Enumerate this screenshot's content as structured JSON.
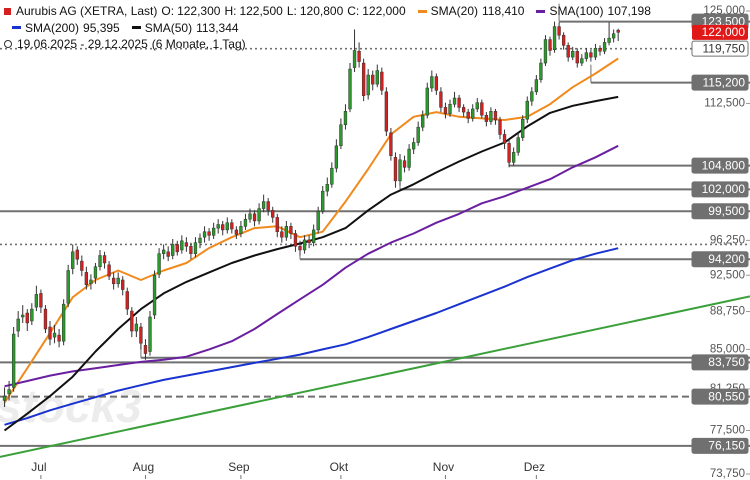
{
  "chart_data": {
    "type": "candlestick",
    "name": "Aurubis AG (XETRA, Last)",
    "name_color": "#d42020",
    "quote_keys": [
      "O:",
      "H:",
      "L:",
      "C:"
    ],
    "quote_labels": [
      "122,300",
      "122,500",
      "120,800",
      "122,000"
    ],
    "date_range": "19.06.2025 - 29.12.2025",
    "period": "(6 Monate, 1 Tag)",
    "watermark": "stock3",
    "log_scale": true,
    "grid": false,
    "up_color": "#2a9a2a",
    "down_color": "#d42020",
    "xlim": [
      -1,
      164
    ],
    "ylim": [
      73.75,
      125
    ],
    "yticks": [
      {
        "value": 125,
        "label": "125,000"
      },
      {
        "value": 112.5,
        "label": "112,500"
      },
      {
        "value": 96.25,
        "label": "96,250"
      },
      {
        "value": 92.5,
        "label": "92,500"
      },
      {
        "value": 88.75,
        "label": "88,750"
      },
      {
        "value": 85,
        "label": "85,000"
      },
      {
        "value": 81.25,
        "label": "81,250"
      },
      {
        "value": 77.5,
        "label": "77,500"
      },
      {
        "value": 73.75,
        "label": "73,750"
      }
    ],
    "categories": [
      null,
      null,
      null,
      null,
      null,
      null,
      null,
      null,
      "Jul",
      null,
      null,
      null,
      null,
      null,
      null,
      null,
      null,
      null,
      null,
      null,
      null,
      null,
      null,
      null,
      null,
      null,
      null,
      null,
      null,
      null,
      null,
      "Aug",
      null,
      null,
      null,
      null,
      null,
      null,
      null,
      null,
      null,
      null,
      null,
      null,
      null,
      null,
      null,
      null,
      null,
      null,
      null,
      null,
      "Sep",
      null,
      null,
      null,
      null,
      null,
      null,
      null,
      null,
      null,
      null,
      null,
      null,
      null,
      null,
      null,
      null,
      null,
      null,
      null,
      null,
      null,
      "Okt",
      null,
      null,
      null,
      null,
      null,
      null,
      null,
      null,
      null,
      null,
      null,
      null,
      null,
      null,
      null,
      null,
      null,
      null,
      null,
      null,
      null,
      null,
      "Nov",
      null,
      null,
      null,
      null,
      null,
      null,
      null,
      null,
      null,
      null,
      null,
      null,
      null,
      null,
      null,
      null,
      null,
      null,
      null,
      "Dez",
      null,
      null,
      null,
      null,
      null,
      null,
      null,
      null,
      null,
      null,
      null,
      null,
      null,
      null,
      null,
      null,
      null,
      null
    ],
    "candles": [
      [
        80.2,
        81.4,
        79.6,
        80.6
      ],
      [
        80.8,
        82.0,
        80.2,
        81.2
      ],
      [
        81.4,
        87.2,
        81.0,
        86.5
      ],
      [
        86.8,
        88.8,
        86.2,
        88.0
      ],
      [
        88.2,
        89.4,
        87.6,
        88.4
      ],
      [
        88.6,
        89.0,
        86.8,
        87.6
      ],
      [
        87.8,
        89.6,
        87.4,
        89.0
      ],
      [
        89.2,
        91.4,
        88.8,
        90.5
      ],
      [
        90.6,
        91.0,
        88.6,
        89.2
      ],
      [
        89.0,
        89.4,
        86.6,
        87.0
      ],
      [
        87.2,
        87.8,
        85.4,
        86.0
      ],
      [
        86.2,
        87.4,
        85.6,
        86.6
      ],
      [
        86.4,
        87.0,
        85.2,
        85.8
      ],
      [
        85.8,
        90.0,
        85.4,
        89.5
      ],
      [
        89.6,
        93.6,
        89.2,
        93.0
      ],
      [
        93.2,
        95.8,
        92.6,
        95.0
      ],
      [
        95.2,
        95.6,
        93.6,
        94.2
      ],
      [
        94.0,
        94.6,
        92.4,
        93.0
      ],
      [
        92.8,
        93.4,
        91.0,
        91.5
      ],
      [
        91.6,
        92.6,
        91.0,
        92.0
      ],
      [
        92.2,
        93.8,
        91.6,
        93.4
      ],
      [
        93.4,
        95.2,
        93.0,
        94.6
      ],
      [
        94.6,
        95.0,
        93.2,
        93.8
      ],
      [
        93.6,
        94.0,
        92.0,
        92.4
      ],
      [
        92.2,
        92.8,
        91.0,
        91.6
      ],
      [
        91.6,
        92.8,
        91.2,
        92.2
      ],
      [
        92.0,
        92.4,
        90.4,
        91.0
      ],
      [
        90.8,
        91.2,
        88.4,
        89.0
      ],
      [
        88.8,
        89.2,
        86.2,
        86.8
      ],
      [
        86.8,
        88.2,
        86.2,
        87.5
      ],
      [
        87.2,
        87.6,
        85.0,
        85.6
      ],
      [
        85.4,
        86.0,
        84.0,
        84.6
      ],
      [
        84.8,
        88.8,
        84.4,
        88.2
      ],
      [
        88.4,
        93.0,
        88.0,
        92.5
      ],
      [
        92.6,
        95.4,
        92.2,
        94.8
      ],
      [
        94.8,
        95.8,
        94.2,
        95.2
      ],
      [
        95.0,
        95.6,
        94.0,
        94.5
      ],
      [
        94.6,
        96.4,
        94.2,
        95.8
      ],
      [
        95.8,
        96.2,
        94.6,
        95.0
      ],
      [
        95.2,
        96.8,
        94.8,
        96.2
      ],
      [
        96.0,
        96.6,
        95.0,
        95.6
      ],
      [
        95.6,
        96.0,
        94.2,
        94.8
      ],
      [
        94.8,
        96.6,
        94.4,
        96.0
      ],
      [
        96.0,
        97.0,
        95.4,
        96.5
      ],
      [
        96.6,
        97.8,
        96.0,
        97.2
      ],
      [
        97.2,
        97.6,
        96.2,
        96.8
      ],
      [
        96.8,
        98.2,
        96.4,
        97.6
      ],
      [
        97.6,
        98.6,
        97.0,
        98.0
      ],
      [
        98.0,
        98.4,
        96.8,
        97.4
      ],
      [
        97.4,
        98.8,
        97.0,
        98.2
      ],
      [
        98.2,
        98.6,
        97.0,
        97.5
      ],
      [
        97.4,
        97.8,
        96.4,
        96.9
      ],
      [
        97.0,
        98.4,
        96.6,
        97.8
      ],
      [
        97.8,
        99.2,
        97.4,
        98.6
      ],
      [
        98.6,
        99.8,
        98.2,
        99.2
      ],
      [
        99.2,
        99.6,
        97.8,
        98.4
      ],
      [
        98.4,
        100.4,
        98.0,
        99.8
      ],
      [
        99.8,
        101.4,
        99.4,
        100.6
      ],
      [
        100.6,
        101.0,
        99.0,
        99.6
      ],
      [
        99.6,
        100.0,
        98.2,
        98.8
      ],
      [
        98.8,
        99.2,
        96.6,
        97.2
      ],
      [
        97.2,
        97.8,
        96.0,
        96.6
      ],
      [
        96.6,
        98.4,
        96.2,
        97.8
      ],
      [
        97.8,
        98.2,
        96.4,
        97.0
      ],
      [
        97.0,
        97.4,
        95.0,
        95.6
      ],
      [
        95.6,
        96.2,
        94.6,
        95.2
      ],
      [
        95.2,
        96.8,
        94.8,
        96.3
      ],
      [
        96.3,
        96.8,
        95.4,
        96.0
      ],
      [
        96.0,
        98.0,
        95.6,
        97.4
      ],
      [
        97.4,
        100.0,
        97.0,
        99.5
      ],
      [
        99.5,
        102.4,
        99.2,
        101.8
      ],
      [
        101.8,
        103.4,
        101.2,
        102.6
      ],
      [
        102.6,
        105.2,
        102.2,
        104.5
      ],
      [
        104.5,
        108.0,
        104.0,
        107.2
      ],
      [
        107.2,
        110.6,
        106.8,
        109.8
      ],
      [
        109.8,
        112.4,
        109.2,
        111.5
      ],
      [
        111.8,
        117.8,
        111.4,
        117.0
      ],
      [
        117.2,
        122.4,
        116.6,
        119.5
      ],
      [
        119.4,
        120.6,
        117.2,
        118.0
      ],
      [
        117.8,
        118.4,
        112.8,
        113.5
      ],
      [
        113.6,
        117.0,
        113.0,
        116.2
      ],
      [
        116.2,
        116.8,
        114.2,
        115.0
      ],
      [
        115.0,
        117.6,
        114.6,
        116.8
      ],
      [
        116.6,
        117.2,
        113.6,
        114.2
      ],
      [
        114.0,
        114.6,
        108.4,
        109.0
      ],
      [
        108.8,
        109.4,
        105.4,
        106.0
      ],
      [
        105.8,
        106.4,
        102.2,
        103.0
      ],
      [
        103.0,
        106.2,
        102.4,
        105.5
      ],
      [
        105.4,
        106.0,
        104.0,
        104.6
      ],
      [
        104.6,
        107.4,
        104.2,
        106.8
      ],
      [
        106.8,
        108.2,
        106.2,
        107.6
      ],
      [
        107.6,
        110.2,
        107.2,
        109.5
      ],
      [
        109.5,
        111.6,
        109.0,
        111.0
      ],
      [
        111.0,
        115.2,
        110.6,
        114.5
      ],
      [
        114.5,
        116.8,
        114.0,
        116.0
      ],
      [
        116.0,
        116.4,
        113.6,
        114.2
      ],
      [
        114.0,
        114.6,
        111.4,
        112.0
      ],
      [
        112.0,
        112.6,
        110.6,
        111.2
      ],
      [
        111.2,
        113.0,
        110.8,
        112.4
      ],
      [
        112.4,
        114.0,
        112.0,
        113.2
      ],
      [
        113.2,
        113.6,
        111.4,
        112.0
      ],
      [
        112.0,
        112.4,
        110.8,
        111.4
      ],
      [
        111.4,
        111.8,
        110.0,
        110.6
      ],
      [
        110.6,
        112.4,
        110.2,
        111.8
      ],
      [
        111.8,
        113.2,
        111.4,
        112.6
      ],
      [
        112.6,
        113.0,
        110.6,
        111.0
      ],
      [
        111.0,
        111.4,
        109.6,
        110.2
      ],
      [
        110.2,
        112.0,
        109.8,
        111.5
      ],
      [
        111.5,
        111.8,
        109.8,
        110.4
      ],
      [
        110.4,
        110.8,
        108.0,
        108.6
      ],
      [
        108.6,
        109.2,
        106.8,
        107.5
      ],
      [
        107.5,
        108.0,
        104.6,
        105.2
      ],
      [
        105.2,
        107.0,
        104.8,
        106.4
      ],
      [
        106.4,
        108.8,
        106.0,
        108.2
      ],
      [
        108.2,
        111.0,
        107.8,
        110.5
      ],
      [
        110.5,
        113.4,
        110.0,
        112.8
      ],
      [
        112.8,
        114.6,
        112.2,
        114.0
      ],
      [
        114.0,
        116.2,
        113.6,
        115.6
      ],
      [
        115.6,
        118.4,
        115.2,
        117.8
      ],
      [
        117.8,
        121.6,
        117.4,
        121.0
      ],
      [
        121.0,
        121.4,
        118.8,
        119.5
      ],
      [
        119.6,
        123.5,
        119.2,
        122.8
      ],
      [
        122.8,
        123.4,
        121.0,
        121.6
      ],
      [
        121.6,
        122.0,
        119.6,
        120.2
      ],
      [
        120.2,
        120.6,
        118.0,
        118.6
      ],
      [
        118.6,
        120.0,
        118.2,
        119.4
      ],
      [
        119.4,
        119.8,
        117.2,
        117.8
      ],
      [
        117.8,
        119.0,
        117.4,
        118.4
      ],
      [
        118.4,
        119.8,
        118.0,
        119.2
      ],
      [
        119.2,
        119.6,
        118.0,
        118.6
      ],
      [
        118.6,
        120.4,
        118.2,
        119.8
      ],
      [
        119.8,
        120.2,
        118.8,
        119.4
      ],
      [
        119.4,
        121.2,
        119.0,
        120.6
      ],
      [
        120.6,
        123.4,
        120.2,
        121.2
      ],
      [
        121.2,
        122.4,
        120.6,
        121.8
      ],
      [
        122.3,
        122.5,
        120.8,
        122.0
      ]
    ],
    "series": [
      {
        "name": "SMA(20)",
        "color": "#f08a1c",
        "last_label": "118,410",
        "x": [
          0,
          5,
          10,
          15,
          20,
          25,
          30,
          35,
          40,
          45,
          50,
          55,
          60,
          65,
          70,
          75,
          80,
          85,
          90,
          95,
          100,
          105,
          110,
          115,
          120,
          125,
          130,
          135
        ],
        "values": [
          80.0,
          83.2,
          86.6,
          90.2,
          92.0,
          93.0,
          92.0,
          93.0,
          93.8,
          95.4,
          96.6,
          97.6,
          97.8,
          96.6,
          97.2,
          100.6,
          104.4,
          108.6,
          110.8,
          111.4,
          110.8,
          110.6,
          110.4,
          110.8,
          112.4,
          114.6,
          116.4,
          118.41
        ]
      },
      {
        "name": "SMA(100)",
        "color": "#6a1fa0",
        "last_label": "107,198",
        "x": [
          0,
          5,
          10,
          15,
          20,
          25,
          30,
          35,
          40,
          45,
          50,
          55,
          60,
          65,
          70,
          75,
          80,
          85,
          90,
          95,
          100,
          105,
          110,
          115,
          120,
          125,
          130,
          135
        ],
        "values": [
          81.5,
          82.0,
          82.5,
          82.9,
          83.2,
          83.5,
          83.8,
          84.0,
          84.3,
          85.0,
          85.8,
          87.0,
          88.5,
          90.0,
          91.5,
          93.3,
          94.8,
          96.0,
          97.0,
          98.2,
          99.2,
          100.4,
          101.2,
          102.2,
          103.2,
          104.6,
          105.8,
          107.198
        ]
      },
      {
        "name": "SMA(200)",
        "color": "#1a33d0",
        "last_label": "95,395",
        "x": [
          0,
          5,
          10,
          15,
          20,
          25,
          30,
          35,
          40,
          45,
          50,
          55,
          60,
          65,
          70,
          75,
          80,
          85,
          90,
          95,
          100,
          105,
          110,
          115,
          120,
          125,
          130,
          135
        ],
        "values": [
          78.0,
          78.6,
          79.3,
          79.9,
          80.5,
          81.1,
          81.6,
          82.1,
          82.5,
          82.9,
          83.3,
          83.7,
          84.1,
          84.5,
          85.0,
          85.5,
          86.2,
          87.0,
          87.8,
          88.6,
          89.5,
          90.4,
          91.3,
          92.3,
          93.2,
          94.1,
          94.8,
          95.395
        ]
      },
      {
        "name": "SMA(50)",
        "color": "#111111",
        "last_label": "113,344",
        "x": [
          0,
          5,
          10,
          15,
          20,
          25,
          30,
          35,
          40,
          45,
          50,
          55,
          60,
          65,
          70,
          75,
          80,
          85,
          90,
          95,
          100,
          105,
          110,
          115,
          120,
          125,
          130,
          135
        ],
        "values": [
          77.5,
          79.0,
          80.6,
          82.4,
          84.8,
          87.0,
          89.0,
          90.6,
          91.8,
          92.8,
          93.8,
          94.6,
          95.3,
          95.9,
          96.6,
          97.6,
          99.6,
          101.4,
          102.6,
          104.0,
          105.3,
          106.5,
          107.6,
          109.6,
          111.3,
          112.2,
          112.8,
          113.344
        ]
      }
    ],
    "trendline": {
      "color": "#3aa03a",
      "x": [
        -1,
        164
      ],
      "values": [
        75.2,
        90.3
      ]
    },
    "levels": [
      {
        "value": 123.5,
        "label": "123,500",
        "from": 122,
        "style": "solid"
      },
      {
        "value": 119.75,
        "label": "119,750",
        "style": "dotted"
      },
      {
        "value": 115.2,
        "label": "115,200",
        "from": 129,
        "style": "solid"
      },
      {
        "value": 104.8,
        "label": "104,800",
        "from": 111,
        "style": "solid"
      },
      {
        "value": 102,
        "label": "102,000",
        "from": 87,
        "style": "solid"
      },
      {
        "value": 99.5,
        "label": "99,500",
        "style": "solid"
      },
      {
        "value": 95.8,
        "style": "dotted"
      },
      {
        "value": 94.2,
        "label": "94,200",
        "from": 65,
        "style": "solid"
      },
      {
        "value": 84.2,
        "from": 30,
        "style": "solid"
      },
      {
        "value": 83.75,
        "label": "83,750",
        "style": "solid"
      },
      {
        "value": 80.55,
        "label": "80,550",
        "style": "dashed"
      },
      {
        "value": 76.15,
        "label": "76,150",
        "style": "solid"
      }
    ],
    "level_color": "#707070",
    "price_marker_color": "#e01818"
  }
}
